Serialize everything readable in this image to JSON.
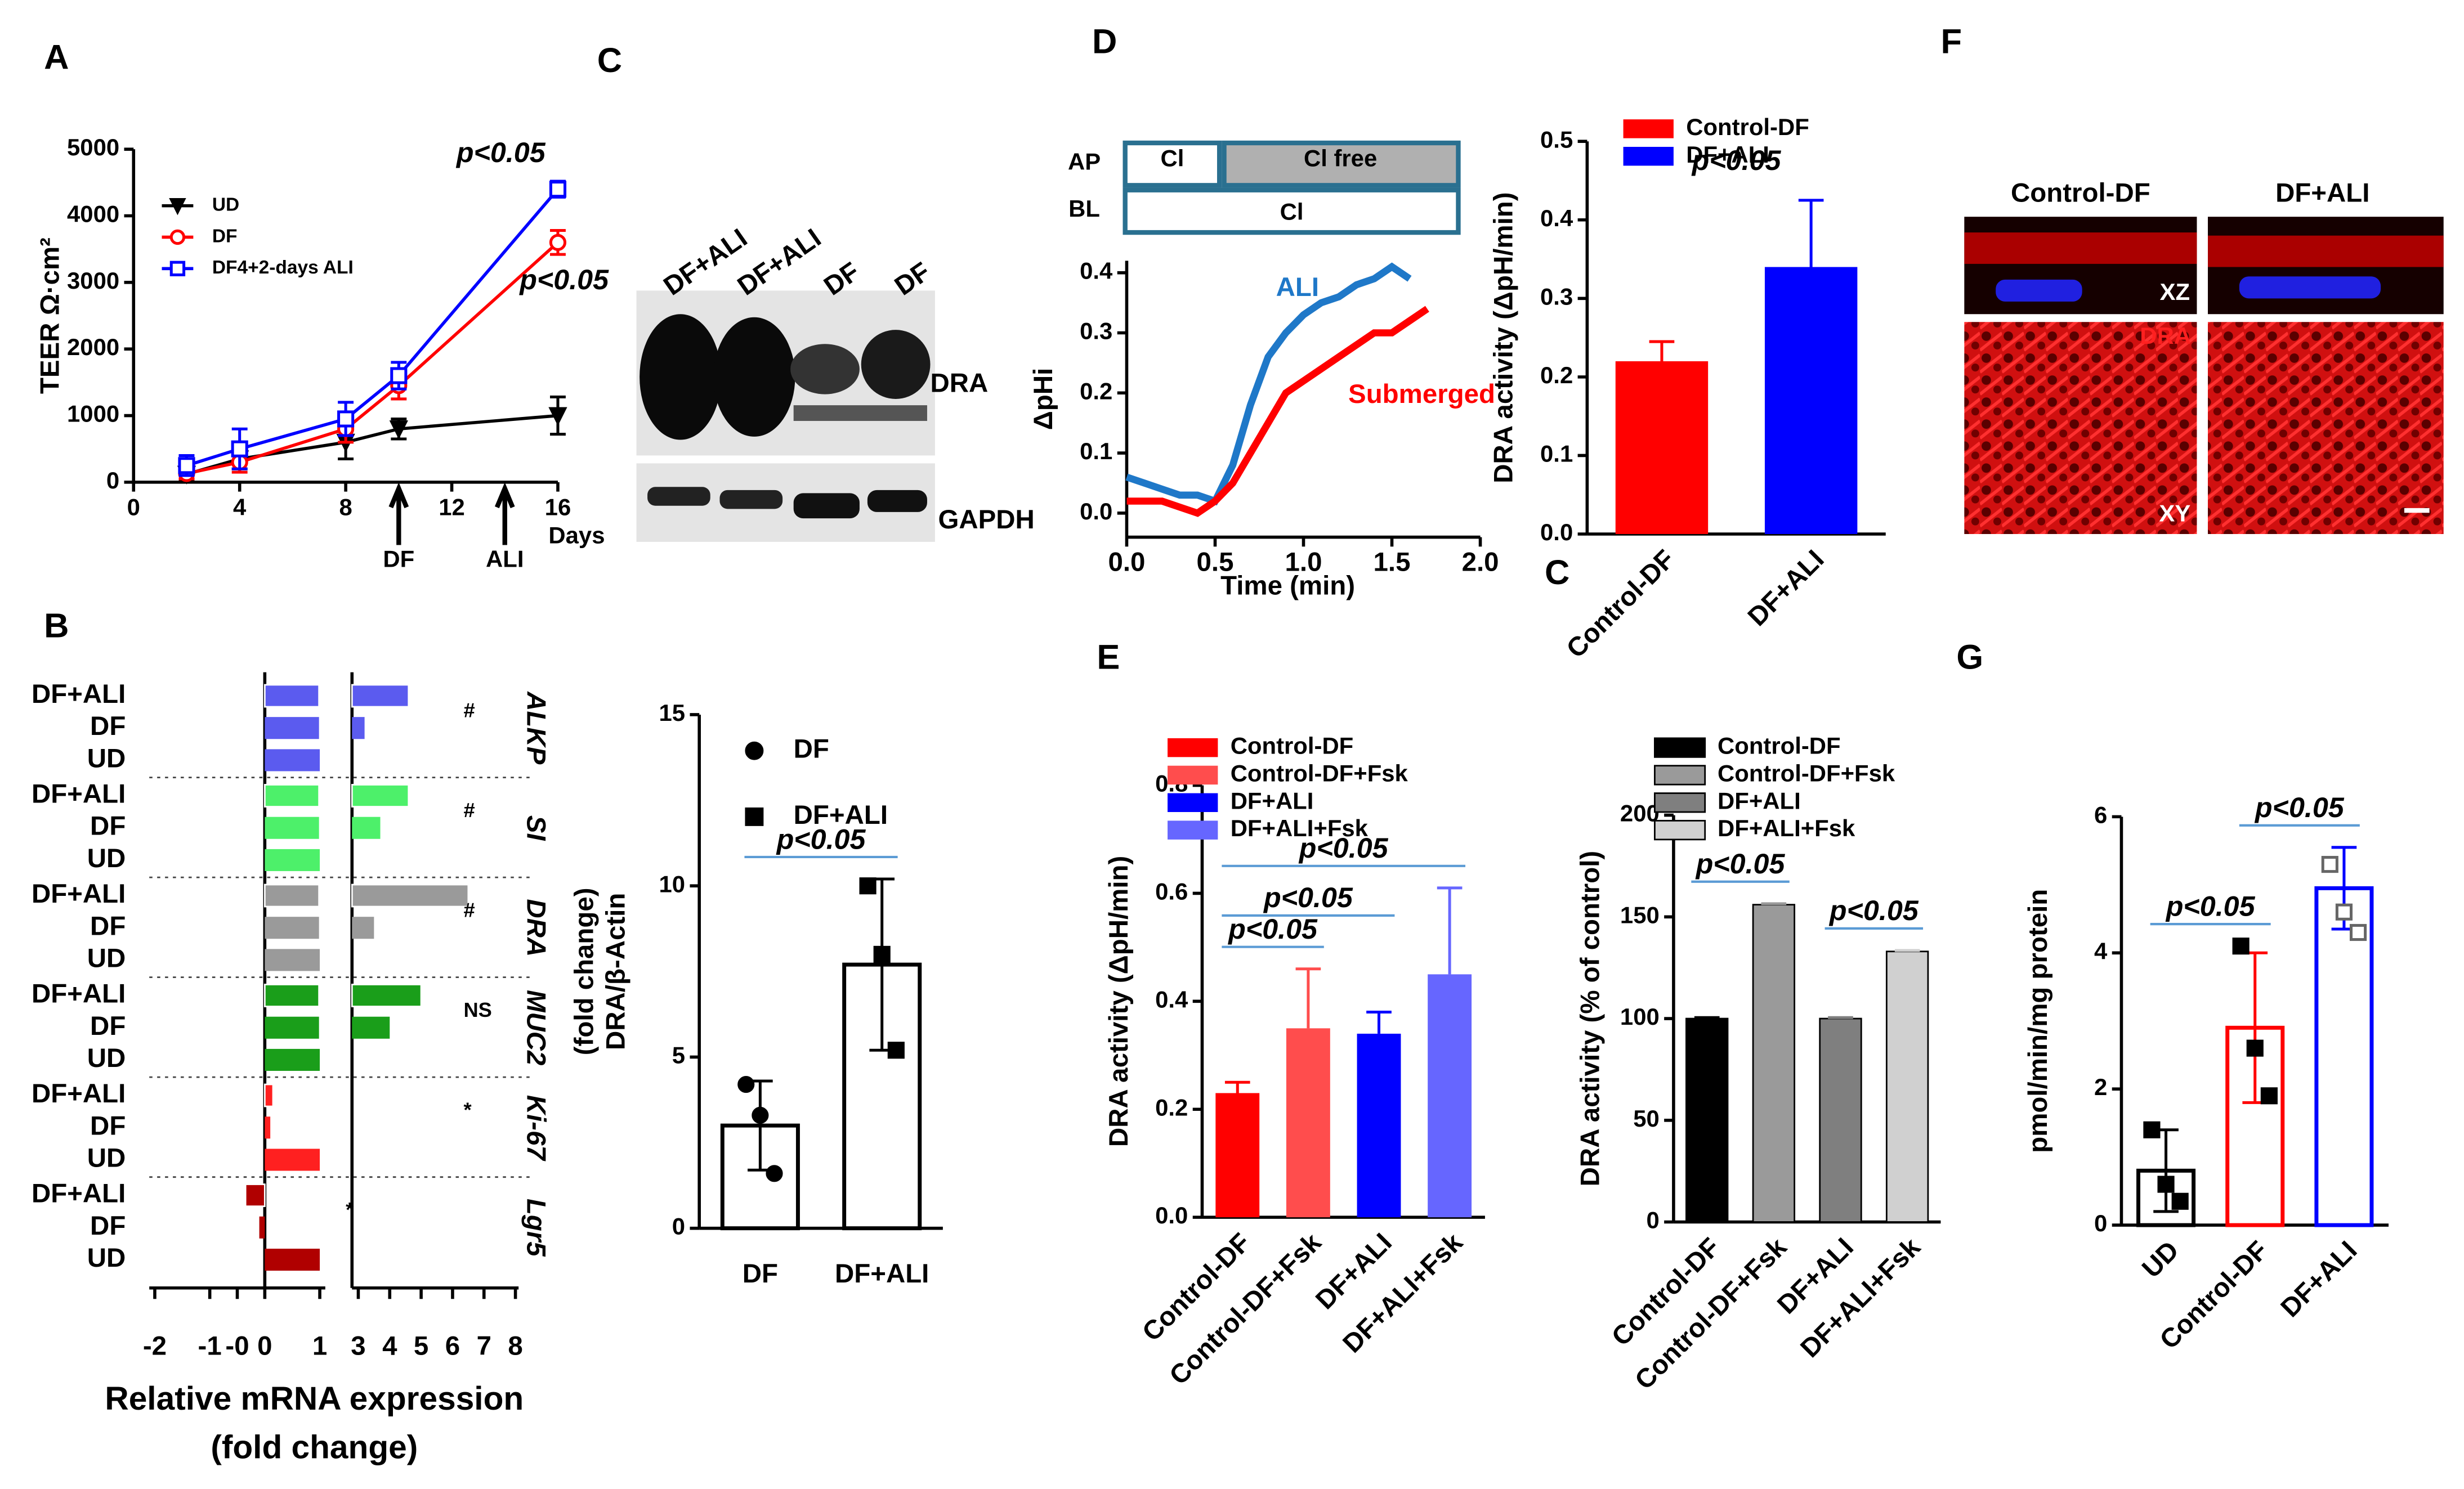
{
  "panel_labels": [
    "A",
    "B",
    "C",
    "D",
    "E",
    "F",
    "G",
    "C"
  ],
  "blot": {
    "lanes": [
      "DF+ALI",
      "DF+ALI",
      "DF",
      "DF"
    ],
    "bands": [
      "DRA",
      "GAPDH"
    ]
  },
  "images": {
    "columns": [
      "Control-DF",
      "DF+ALI"
    ],
    "views": [
      "XZ",
      "XY"
    ],
    "stain": "DRA"
  },
  "chart_data": [
    {
      "type": "line",
      "ylabel": "TEER Ω·cm²",
      "xlabel": "Days",
      "legend": "upper-left",
      "x": [
        2,
        4,
        8,
        10,
        16
      ],
      "series": [
        {
          "name": "UD",
          "color": "#000000",
          "marker": "filled-triangle",
          "values": [
            120,
            350,
            600,
            800,
            1000
          ],
          "errors": [
            80,
            150,
            250,
            150,
            280
          ]
        },
        {
          "name": "DF",
          "color": "#ff0000",
          "marker": "open-circle",
          "values": [
            130,
            300,
            800,
            1450,
            3600
          ],
          "errors": [
            80,
            150,
            200,
            200,
            180
          ]
        },
        {
          "name": "DF4+2-days ALI",
          "color": "#0000ff",
          "marker": "open-square",
          "values": [
            250,
            500,
            950,
            1600,
            4400
          ],
          "errors": [
            150,
            300,
            250,
            200,
            120
          ]
        }
      ],
      "xlim": [
        0,
        16
      ],
      "xticks": [
        0,
        4,
        8,
        12,
        16
      ],
      "ylim": [
        0,
        5000
      ],
      "yticks": [
        0,
        1000,
        2000,
        3000,
        4000,
        5000
      ],
      "annotations": [
        {
          "text": "p<0.05",
          "series": 2
        },
        {
          "text": "p<0.05",
          "series": 1
        }
      ],
      "arrows": [
        {
          "text": "DF",
          "x": 10
        },
        {
          "text": "ALI",
          "x": 14
        }
      ]
    },
    {
      "type": "hbar_broken",
      "xlabel": [
        "Relative mRNA expression",
        "(fold change)"
      ],
      "categories": [
        "DF+ALI",
        "DF",
        "UD"
      ],
      "groups": [
        {
          "name": "ALKP",
          "color": "#5b5bef",
          "values": [
            4.6,
            3.2,
            1
          ],
          "annotation": "#"
        },
        {
          "name": "SI",
          "color": "#4df06a",
          "values": [
            4.6,
            3.7,
            1
          ],
          "annotation": "#"
        },
        {
          "name": "DRA",
          "color": "#9a9a9a",
          "values": [
            6.5,
            3.5,
            1
          ],
          "annotation": "#"
        },
        {
          "name": "MUC2",
          "color": "#1a9e1a",
          "values": [
            5.0,
            4.0,
            1
          ],
          "annotation": "NS"
        },
        {
          "name": "Ki-67",
          "color": "#ff2020",
          "values": [
            0.15,
            0.1,
            1
          ],
          "annotation": "*"
        },
        {
          "name": "Lgr5",
          "color": "#b00000",
          "values": [
            -0.35,
            -0.1,
            1
          ],
          "annotation": "*"
        }
      ],
      "xlim": [
        -2.1,
        1.1
      ],
      "xticks": [
        -2,
        -1,
        {
          "value": -0.5,
          "label": "-0"
        },
        0,
        1
      ],
      "x2lim": [
        2.8,
        8.1
      ],
      "x2ticks": [
        3,
        4,
        5,
        6,
        7,
        8
      ]
    },
    {
      "type": "bar",
      "style": "outline",
      "ylabel": [
        "DRA/β-Actin",
        "(fold change)"
      ],
      "legend": "top-right",
      "categories": [
        "DF",
        "DF+ALI"
      ],
      "values": [
        3.0,
        7.7
      ],
      "errors": [
        1.3,
        2.5
      ],
      "colors": [
        "#000000",
        "#000000"
      ],
      "markers": [
        "filled-circle",
        "filled-square"
      ],
      "points": [
        [
          4.2,
          3.3,
          1.6
        ],
        [
          10.0,
          8.0,
          5.2
        ]
      ],
      "ylim": [
        0,
        15
      ],
      "yticks": [
        0,
        5,
        10,
        15
      ],
      "annotations": [
        {
          "text": "p<0.05",
          "pair": [
            0,
            1
          ]
        }
      ]
    },
    {
      "type": "line",
      "ylabel": "ΔpHi",
      "xlabel": "Time (min)",
      "legend": "inline",
      "series": [
        {
          "name": "ALI",
          "color": "#1f78c8",
          "x": [
            0,
            0.1,
            0.2,
            0.3,
            0.4,
            0.5,
            0.6,
            0.7,
            0.8,
            0.9,
            1.0,
            1.1,
            1.2,
            1.3,
            1.4,
            1.5,
            1.6
          ],
          "values": [
            0.06,
            0.05,
            0.04,
            0.03,
            0.03,
            0.02,
            0.08,
            0.18,
            0.26,
            0.3,
            0.33,
            0.35,
            0.36,
            0.38,
            0.39,
            0.41,
            0.39
          ]
        },
        {
          "name": "Submerged",
          "color": "#ff0000",
          "x": [
            0,
            0.1,
            0.2,
            0.3,
            0.4,
            0.5,
            0.6,
            0.7,
            0.8,
            0.9,
            1.0,
            1.1,
            1.2,
            1.3,
            1.4,
            1.5,
            1.6,
            1.7
          ],
          "values": [
            0.02,
            0.02,
            0.02,
            0.01,
            0.0,
            0.02,
            0.05,
            0.1,
            0.15,
            0.2,
            0.22,
            0.24,
            0.26,
            0.28,
            0.3,
            0.3,
            0.32,
            0.34
          ]
        }
      ],
      "xlim": [
        0,
        2
      ],
      "xticks": [
        {
          "value": 0,
          "label": "0.0"
        },
        0.5,
        {
          "value": 1,
          "label": "1.0"
        },
        1.5,
        {
          "value": 2,
          "label": "2.0"
        }
      ],
      "ylim": [
        -0.04,
        0.42
      ],
      "yticks": [
        {
          "value": 0,
          "label": "0.0"
        },
        0.1,
        0.2,
        0.3,
        0.4
      ],
      "protocol": {
        "rows": [
          "AP",
          "BL"
        ],
        "AP": [
          "Cl",
          "Cl free"
        ],
        "BL": [
          "Cl"
        ]
      }
    },
    {
      "type": "bar",
      "style": "filled",
      "ylabel": "DRA activity (ΔpH/min)",
      "legend": "top",
      "label_rotation": -45,
      "categories": [
        "Control-DF",
        "DF+ALI"
      ],
      "values": [
        0.22,
        0.34
      ],
      "errors": [
        0.025,
        0.085
      ],
      "colors": [
        "#ff0000",
        "#0000ff"
      ],
      "ylim": [
        0,
        0.5
      ],
      "yticks": [
        {
          "value": 0,
          "label": "0.0"
        },
        0.1,
        0.2,
        0.3,
        0.4,
        0.5
      ],
      "annotations": [
        {
          "text": "p<0.05",
          "pair": [
            0,
            1
          ],
          "bracket": false
        }
      ]
    },
    {
      "type": "bar",
      "style": "filled",
      "ylabel": "DRA activity (ΔpH/min)",
      "legend": "top",
      "label_rotation": -45,
      "categories": [
        "Control-DF",
        "Control-DF+Fsk",
        "DF+ALI",
        "DF+ALI+Fsk"
      ],
      "values": [
        0.23,
        0.35,
        0.34,
        0.45
      ],
      "errors": [
        0.02,
        0.11,
        0.04,
        0.16
      ],
      "colors": [
        "#ff0000",
        "#ff4d4d",
        "#0000ff",
        "#6666ff"
      ],
      "ylim": [
        0,
        0.8
      ],
      "yticks": [
        {
          "value": 0,
          "label": "0.0"
        },
        0.2,
        0.4,
        0.6,
        0.8
      ],
      "annotations": [
        {
          "text": "p<0.05",
          "pair": [
            0,
            1
          ]
        },
        {
          "text": "p<0.05",
          "pair": [
            0,
            2
          ]
        },
        {
          "text": "p<0.05",
          "pair": [
            0,
            3
          ]
        }
      ]
    },
    {
      "type": "bar",
      "style": "filled",
      "edgecolor": "#000000",
      "ylabel": "DRA activity (% of control)",
      "legend": "top",
      "label_rotation": -45,
      "categories": [
        "Control-DF",
        "Control-DF+Fsk",
        "DF+ALI",
        "DF+ALI+Fsk"
      ],
      "values": [
        100,
        156,
        100,
        133
      ],
      "errors": [
        0.5,
        0.5,
        0.5,
        0.5
      ],
      "colors": [
        "#000000",
        "#9a9a9a",
        "#7f7f7f",
        "#d0d0d0"
      ],
      "ylim": [
        0,
        200
      ],
      "yticks": [
        0,
        50,
        100,
        150,
        200
      ],
      "annotations": [
        {
          "text": "p<0.05",
          "pair": [
            0,
            1
          ]
        },
        {
          "text": "p<0.05",
          "pair": [
            2,
            3
          ]
        }
      ]
    },
    {
      "type": "bar",
      "style": "outline",
      "ylabel": "pmol/min/mg protein",
      "label_rotation": -45,
      "categories": [
        "UD",
        "Control-DF",
        "DF+ALI"
      ],
      "values": [
        0.8,
        2.9,
        4.95
      ],
      "errors": [
        0.6,
        1.1,
        0.6
      ],
      "colors": [
        "#000000",
        "#ff0000",
        "#0000ff"
      ],
      "markers": [
        "filled-square",
        "filled-square",
        "open-square"
      ],
      "points": [
        [
          1.4,
          0.6,
          0.35
        ],
        [
          4.1,
          2.6,
          1.9
        ],
        [
          5.3,
          4.6,
          4.3
        ]
      ],
      "ylim": [
        0,
        6
      ],
      "yticks": [
        0,
        2,
        4,
        6
      ],
      "annotations": [
        {
          "text": "p<0.05",
          "pair": [
            0,
            1
          ]
        },
        {
          "text": "p<0.05",
          "pair": [
            1,
            2
          ]
        }
      ]
    }
  ]
}
